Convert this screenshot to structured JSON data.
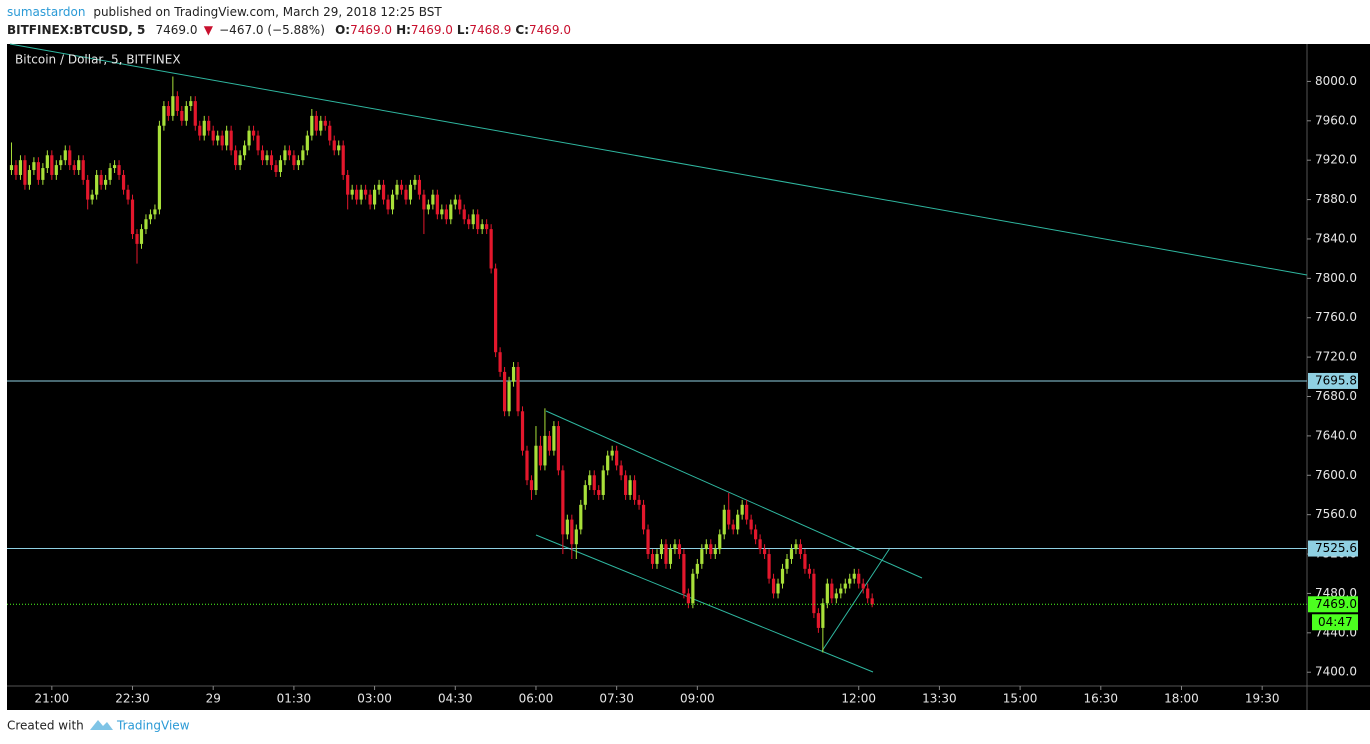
{
  "chart_data": {
    "type": "candlestick",
    "header": {
      "author": "sumastardon",
      "published": "published on TradingView.com, March 29, 2018 12:25 BST",
      "symbol": "BITFINEX:BTCUSD, 5",
      "last": "7469.0",
      "change": "−467.0 (−5.88%)",
      "ohlc": [
        {
          "label": "O:",
          "value": "7469.0"
        },
        {
          "label": "H:",
          "value": "7469.0"
        },
        {
          "label": "L:",
          "value": "7468.9"
        },
        {
          "label": "C:",
          "value": "7469.0"
        }
      ]
    },
    "title": "Bitcoin / Dollar, 5, BITFINEX",
    "up_color": "#a8e03a",
    "down_color": "#e3172c",
    "xlim": [
      1210,
      2660
    ],
    "xticks": [
      {
        "value": 1260,
        "label": "21:00"
      },
      {
        "value": 1350,
        "label": "22:30"
      },
      {
        "value": 1440,
        "label": "29"
      },
      {
        "value": 1530,
        "label": "01:30"
      },
      {
        "value": 1620,
        "label": "03:00"
      },
      {
        "value": 1710,
        "label": "04:30"
      },
      {
        "value": 1800,
        "label": "06:00"
      },
      {
        "value": 1890,
        "label": "07:30"
      },
      {
        "value": 1980,
        "label": "09:00"
      },
      {
        "value": 2160,
        "label": "12:00"
      },
      {
        "value": 2250,
        "label": "13:30"
      },
      {
        "value": 2340,
        "label": "15:00"
      },
      {
        "value": 2430,
        "label": "16:30"
      },
      {
        "value": 2520,
        "label": "18:00"
      },
      {
        "value": 2610,
        "label": "19:30"
      }
    ],
    "ylim": [
      7386,
      8038
    ],
    "yticks": [
      {
        "value": 7400,
        "label": "7400.0"
      },
      {
        "value": 7440,
        "label": "7440.0"
      },
      {
        "value": 7480,
        "label": "7480.0"
      },
      {
        "value": 7520,
        "label": "7520.0"
      },
      {
        "value": 7560,
        "label": "7560.0"
      },
      {
        "value": 7600,
        "label": "7600.0"
      },
      {
        "value": 7640,
        "label": "7640.0"
      },
      {
        "value": 7680,
        "label": "7680.0"
      },
      {
        "value": 7720,
        "label": "7720.0"
      },
      {
        "value": 7760,
        "label": "7760.0"
      },
      {
        "value": 7800,
        "label": "7800.0"
      },
      {
        "value": 7840,
        "label": "7840.0"
      },
      {
        "value": 7880,
        "label": "7880.0"
      },
      {
        "value": 7920,
        "label": "7920.0"
      },
      {
        "value": 7960,
        "label": "7960.0"
      },
      {
        "value": 8000,
        "label": "8000.0"
      }
    ],
    "levels": [
      {
        "value": 7695.8,
        "color": "#8fd0e2"
      },
      {
        "value": 7525.6,
        "color": "#8fd0e2"
      }
    ],
    "last_price": {
      "value": 7469,
      "label": "7469.0",
      "color": "#4cff1f"
    },
    "countdown": "04:47",
    "footer": {
      "created": "Created with",
      "brand": "TradingView"
    },
    "x": [
      1215,
      1220,
      1225,
      1230,
      1235,
      1240,
      1245,
      1250,
      1255,
      1260,
      1265,
      1270,
      1275,
      1280,
      1285,
      1290,
      1295,
      1300,
      1305,
      1310,
      1315,
      1320,
      1325,
      1330,
      1335,
      1340,
      1345,
      1350,
      1355,
      1360,
      1365,
      1370,
      1375,
      1380,
      1385,
      1390,
      1395,
      1400,
      1405,
      1410,
      1415,
      1420,
      1425,
      1430,
      1435,
      1440,
      1445,
      1450,
      1455,
      1460,
      1465,
      1470,
      1475,
      1480,
      1485,
      1490,
      1495,
      1500,
      1505,
      1510,
      1515,
      1520,
      1525,
      1530,
      1535,
      1540,
      1545,
      1550,
      1555,
      1560,
      1565,
      1570,
      1575,
      1580,
      1585,
      1590,
      1595,
      1600,
      1605,
      1610,
      1615,
      1620,
      1625,
      1630,
      1635,
      1640,
      1645,
      1650,
      1655,
      1660,
      1665,
      1670,
      1675,
      1680,
      1685,
      1690,
      1695,
      1700,
      1705,
      1710,
      1715,
      1720,
      1725,
      1730,
      1735,
      1740,
      1745,
      1750,
      1755,
      1760,
      1765,
      1770,
      1775,
      1780,
      1785,
      1790,
      1795,
      1800,
      1805,
      1810,
      1815,
      1820,
      1825,
      1830,
      1835,
      1840,
      1845,
      1850,
      1855,
      1860,
      1865,
      1870,
      1875,
      1880,
      1885,
      1890,
      1895,
      1900,
      1905,
      1910,
      1915,
      1920,
      1925,
      1930,
      1935,
      1940,
      1945,
      1950,
      1955,
      1960,
      1965,
      1970,
      1975,
      1980,
      1985,
      1990,
      1995,
      2000,
      2005,
      2010,
      2015,
      2020,
      2025,
      2030,
      2035,
      2040,
      2045,
      2050,
      2055,
      2060,
      2065,
      2070,
      2075,
      2080,
      2085,
      2090,
      2095,
      2100,
      2105,
      2110,
      2115,
      2120,
      2125,
      2130,
      2135,
      2140,
      2145,
      2150,
      2155,
      2160,
      2165,
      2170,
      2175
    ],
    "open": [
      7910,
      7915,
      7905,
      7920,
      7895,
      7910,
      7918,
      7900,
      7912,
      7925,
      7905,
      7915,
      7920,
      7930,
      7915,
      7910,
      7920,
      7900,
      7880,
      7885,
      7905,
      7895,
      7900,
      7912,
      7915,
      7905,
      7890,
      7880,
      7845,
      7835,
      7850,
      7860,
      7865,
      7870,
      7955,
      7975,
      7965,
      7985,
      7970,
      7960,
      7975,
      7980,
      7955,
      7945,
      7960,
      7950,
      7940,
      7945,
      7935,
      7950,
      7930,
      7915,
      7925,
      7935,
      7950,
      7945,
      7930,
      7920,
      7925,
      7915,
      7908,
      7920,
      7930,
      7925,
      7915,
      7920,
      7930,
      7945,
      7965,
      7950,
      7960,
      7955,
      7940,
      7930,
      7935,
      7905,
      7885,
      7890,
      7880,
      7890,
      7885,
      7875,
      7890,
      7895,
      7880,
      7870,
      7885,
      7895,
      7890,
      7880,
      7895,
      7900,
      7885,
      7870,
      7875,
      7885,
      7865,
      7870,
      7860,
      7875,
      7880,
      7870,
      7860,
      7855,
      7865,
      7850,
      7855,
      7850,
      7810,
      7725,
      7705,
      7665,
      7695,
      7710,
      7665,
      7625,
      7595,
      7585,
      7630,
      7610,
      7640,
      7625,
      7650,
      7605,
      7540,
      7555,
      7530,
      7545,
      7570,
      7590,
      7600,
      7585,
      7580,
      7605,
      7620,
      7625,
      7610,
      7600,
      7580,
      7595,
      7575,
      7570,
      7545,
      7520,
      7510,
      7520,
      7530,
      7510,
      7525,
      7530,
      7520,
      7480,
      7470,
      7500,
      7510,
      7525,
      7530,
      7520,
      7525,
      7540,
      7565,
      7550,
      7545,
      7560,
      7570,
      7555,
      7545,
      7535,
      7525,
      7520,
      7495,
      7480,
      7490,
      7505,
      7515,
      7525,
      7530,
      7520,
      7505,
      7500,
      7460,
      7445,
      7470,
      7490,
      7475,
      7480,
      7485,
      7490,
      7495,
      7500,
      7490,
      7485,
      7475
    ],
    "high": [
      7938,
      7920,
      7925,
      7925,
      7915,
      7923,
      7923,
      7917,
      7930,
      7930,
      7920,
      7925,
      7935,
      7935,
      7920,
      7925,
      7925,
      7905,
      7890,
      7910,
      7910,
      7905,
      7917,
      7920,
      7920,
      7910,
      7895,
      7885,
      7850,
      7855,
      7865,
      7870,
      7875,
      7960,
      7980,
      7980,
      8005,
      7990,
      7975,
      7980,
      7985,
      7985,
      7960,
      7965,
      7965,
      7955,
      7950,
      7950,
      7955,
      7955,
      7935,
      7930,
      7940,
      7955,
      7955,
      7950,
      7935,
      7930,
      7930,
      7920,
      7925,
      7935,
      7935,
      7930,
      7925,
      7935,
      7950,
      7972,
      7970,
      7965,
      7965,
      7960,
      7945,
      7940,
      7940,
      7910,
      7895,
      7895,
      7895,
      7895,
      7890,
      7895,
      7900,
      7900,
      7885,
      7890,
      7900,
      7900,
      7895,
      7900,
      7905,
      7905,
      7890,
      7880,
      7890,
      7890,
      7875,
      7875,
      7880,
      7885,
      7885,
      7875,
      7865,
      7870,
      7870,
      7860,
      7860,
      7855,
      7815,
      7730,
      7710,
      7700,
      7715,
      7715,
      7670,
      7630,
      7600,
      7650,
      7640,
      7668,
      7645,
      7655,
      7655,
      7610,
      7560,
      7560,
      7550,
      7575,
      7595,
      7605,
      7605,
      7590,
      7610,
      7625,
      7630,
      7630,
      7615,
      7605,
      7600,
      7600,
      7580,
      7575,
      7550,
      7525,
      7525,
      7535,
      7535,
      7530,
      7535,
      7535,
      7525,
      7485,
      7505,
      7515,
      7530,
      7535,
      7535,
      7530,
      7545,
      7570,
      7582,
      7555,
      7565,
      7575,
      7575,
      7560,
      7550,
      7540,
      7530,
      7525,
      7500,
      7495,
      7510,
      7520,
      7530,
      7535,
      7535,
      7525,
      7510,
      7505,
      7465,
      7475,
      7495,
      7495,
      7485,
      7490,
      7495,
      7500,
      7505,
      7505,
      7495,
      7490,
      7480
    ],
    "low": [
      7905,
      7900,
      7900,
      7890,
      7890,
      7905,
      7895,
      7895,
      7907,
      7900,
      7900,
      7910,
      7915,
      7910,
      7905,
      7905,
      7895,
      7870,
      7875,
      7880,
      7890,
      7890,
      7895,
      7907,
      7900,
      7885,
      7875,
      7840,
      7815,
      7830,
      7845,
      7855,
      7860,
      7865,
      7950,
      7960,
      7960,
      7965,
      7955,
      7955,
      7970,
      7950,
      7940,
      7940,
      7945,
      7935,
      7935,
      7930,
      7930,
      7925,
      7910,
      7910,
      7920,
      7930,
      7940,
      7925,
      7915,
      7915,
      7910,
      7903,
      7903,
      7915,
      7920,
      7910,
      7910,
      7915,
      7925,
      7940,
      7945,
      7945,
      7950,
      7935,
      7925,
      7925,
      7900,
      7870,
      7880,
      7875,
      7875,
      7880,
      7870,
      7870,
      7885,
      7875,
      7865,
      7865,
      7880,
      7885,
      7875,
      7875,
      7890,
      7880,
      7845,
      7865,
      7870,
      7860,
      7860,
      7855,
      7855,
      7870,
      7865,
      7855,
      7850,
      7850,
      7845,
      7845,
      7845,
      7805,
      7720,
      7700,
      7660,
      7660,
      7690,
      7660,
      7620,
      7590,
      7575,
      7580,
      7605,
      7605,
      7620,
      7620,
      7600,
      7520,
      7535,
      7515,
      7515,
      7540,
      7565,
      7585,
      7580,
      7575,
      7575,
      7600,
      7615,
      7605,
      7595,
      7575,
      7575,
      7570,
      7565,
      7540,
      7515,
      7505,
      7505,
      7515,
      7505,
      7505,
      7520,
      7515,
      7475,
      7465,
      7465,
      7495,
      7505,
      7520,
      7515,
      7515,
      7520,
      7535,
      7545,
      7540,
      7540,
      7555,
      7550,
      7540,
      7530,
      7520,
      7515,
      7490,
      7475,
      7475,
      7485,
      7500,
      7510,
      7520,
      7515,
      7500,
      7495,
      7455,
      7440,
      7420,
      7465,
      7470,
      7470,
      7475,
      7480,
      7485,
      7490,
      7485,
      7480,
      7470,
      7466
    ],
    "close": [
      7915,
      7905,
      7920,
      7895,
      7910,
      7918,
      7900,
      7912,
      7925,
      7905,
      7915,
      7920,
      7930,
      7915,
      7910,
      7920,
      7900,
      7880,
      7885,
      7905,
      7895,
      7900,
      7912,
      7915,
      7905,
      7890,
      7880,
      7845,
      7835,
      7850,
      7860,
      7865,
      7870,
      7955,
      7975,
      7965,
      7985,
      7970,
      7960,
      7975,
      7980,
      7955,
      7945,
      7960,
      7950,
      7940,
      7945,
      7935,
      7950,
      7930,
      7915,
      7925,
      7935,
      7950,
      7945,
      7930,
      7920,
      7925,
      7915,
      7908,
      7920,
      7930,
      7925,
      7915,
      7920,
      7930,
      7945,
      7965,
      7950,
      7960,
      7955,
      7940,
      7930,
      7935,
      7905,
      7885,
      7890,
      7880,
      7890,
      7885,
      7875,
      7890,
      7895,
      7880,
      7870,
      7885,
      7895,
      7890,
      7880,
      7895,
      7900,
      7885,
      7870,
      7875,
      7885,
      7865,
      7870,
      7860,
      7875,
      7880,
      7870,
      7860,
      7855,
      7865,
      7850,
      7855,
      7850,
      7810,
      7725,
      7705,
      7665,
      7695,
      7710,
      7665,
      7625,
      7595,
      7585,
      7630,
      7610,
      7640,
      7625,
      7650,
      7605,
      7540,
      7555,
      7530,
      7545,
      7570,
      7590,
      7600,
      7585,
      7580,
      7605,
      7620,
      7625,
      7610,
      7600,
      7580,
      7595,
      7575,
      7570,
      7545,
      7520,
      7510,
      7520,
      7530,
      7510,
      7525,
      7530,
      7520,
      7480,
      7470,
      7500,
      7510,
      7525,
      7530,
      7520,
      7525,
      7540,
      7565,
      7550,
      7545,
      7560,
      7570,
      7555,
      7545,
      7535,
      7525,
      7520,
      7495,
      7480,
      7490,
      7505,
      7515,
      7525,
      7530,
      7520,
      7505,
      7500,
      7460,
      7445,
      7470,
      7490,
      7475,
      7480,
      7485,
      7490,
      7495,
      7500,
      7490,
      7485,
      7475,
      7469
    ]
  }
}
